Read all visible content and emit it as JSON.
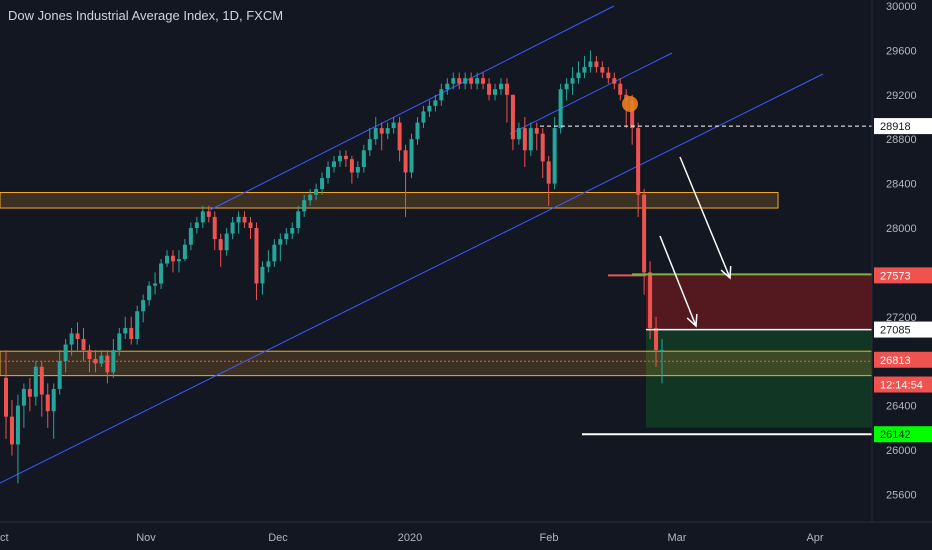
{
  "chart_data": {
    "type": "candlestick",
    "title": "Dow Jones Industrial Average Index, 1D, FXCM",
    "y_ticks": [
      30000,
      29600,
      29200,
      28800,
      28400,
      28000,
      27600,
      27200,
      26800,
      26400,
      26000,
      25600
    ],
    "ylim": [
      25500,
      30000
    ],
    "x_labels": [
      "Oct",
      "Nov",
      "Dec",
      "2020",
      "Feb",
      "Mar",
      "Apr"
    ],
    "grid": false,
    "price_tags": [
      {
        "label": "28918",
        "value": 28918,
        "bg": "#ffffff",
        "fg": "#131722"
      },
      {
        "label": "27573",
        "value": 27573,
        "bg": "#ef5350",
        "fg": "#ffffff"
      },
      {
        "label": "27085",
        "value": 27085,
        "bg": "#ffffff",
        "fg": "#131722"
      },
      {
        "label": "26813",
        "value": 26813,
        "bg": "#ef5350",
        "fg": "#ffffff"
      },
      {
        "label": "12:14:54",
        "value": 26590,
        "bg": "#ef5350",
        "fg": "#ffffff"
      },
      {
        "label": "26142",
        "value": 26142,
        "bg": "#00ff00",
        "fg": "#131722"
      }
    ],
    "zones": [
      {
        "name": "resistance-zone",
        "y_top": 28320,
        "y_bottom": 28180,
        "color": "#f9a825"
      },
      {
        "name": "support-zone",
        "y_top": 26890,
        "y_bottom": 26670,
        "color": "#f9a825"
      }
    ],
    "trade": {
      "entry": 27085,
      "stop": 27573,
      "target": 26142
    },
    "candles_daily": [
      [
        26650,
        26300,
        26900,
        26100
      ],
      [
        26300,
        26050,
        26450,
        25950
      ],
      [
        26050,
        26400,
        26500,
        25700
      ],
      [
        26400,
        26550,
        26600,
        26200
      ],
      [
        26550,
        26480,
        26650,
        26350
      ],
      [
        26480,
        26750,
        26800,
        26400
      ],
      [
        26750,
        26500,
        26800,
        26300
      ],
      [
        26500,
        26350,
        26600,
        26200
      ],
      [
        26350,
        26550,
        26600,
        26100
      ],
      [
        26550,
        26800,
        26900,
        26500
      ],
      [
        26800,
        26950,
        27000,
        26700
      ],
      [
        26950,
        27050,
        27100,
        26850
      ],
      [
        27050,
        27000,
        27150,
        26900
      ],
      [
        27000,
        26900,
        27100,
        26800
      ],
      [
        26900,
        26820,
        26950,
        26700
      ],
      [
        26820,
        26780,
        26900,
        26700
      ],
      [
        26780,
        26850,
        26900,
        26750
      ],
      [
        26850,
        26700,
        26900,
        26600
      ],
      [
        26700,
        26900,
        27000,
        26650
      ],
      [
        26900,
        27050,
        27100,
        26850
      ],
      [
        27050,
        27100,
        27200,
        27000
      ],
      [
        27100,
        27000,
        27200,
        26950
      ],
      [
        27000,
        27250,
        27300,
        26950
      ],
      [
        27250,
        27350,
        27400,
        27150
      ],
      [
        27350,
        27480,
        27520,
        27300
      ],
      [
        27480,
        27500,
        27600,
        27400
      ],
      [
        27500,
        27680,
        27720,
        27450
      ],
      [
        27680,
        27750,
        27800,
        27650
      ],
      [
        27750,
        27700,
        27800,
        27600
      ],
      [
        27700,
        27720,
        27800,
        27600
      ],
      [
        27720,
        27850,
        27900,
        27700
      ],
      [
        27850,
        28000,
        28050,
        27800
      ],
      [
        28000,
        28050,
        28100,
        27950
      ],
      [
        28050,
        28150,
        28200,
        28000
      ],
      [
        28150,
        28100,
        28200,
        28050
      ],
      [
        28100,
        27900,
        28150,
        27800
      ],
      [
        27900,
        27800,
        27950,
        27650
      ],
      [
        27800,
        27950,
        28000,
        27750
      ],
      [
        27950,
        28050,
        28100,
        27900
      ],
      [
        28050,
        28100,
        28150,
        27950
      ],
      [
        28100,
        28050,
        28150,
        28000
      ],
      [
        28050,
        28000,
        28100,
        27900
      ],
      [
        28000,
        27500,
        28050,
        27350
      ],
      [
        27500,
        27650,
        27700,
        27400
      ],
      [
        27650,
        27700,
        27800,
        27600
      ],
      [
        27700,
        27850,
        27900,
        27650
      ],
      [
        27850,
        27900,
        27950,
        27700
      ],
      [
        27900,
        27950,
        28000,
        27850
      ],
      [
        27950,
        28000,
        28050,
        27900
      ],
      [
        28000,
        28150,
        28200,
        27950
      ],
      [
        28150,
        28250,
        28300,
        28100
      ],
      [
        28250,
        28300,
        28350,
        28200
      ],
      [
        28300,
        28350,
        28400,
        28250
      ],
      [
        28350,
        28450,
        28500,
        28300
      ],
      [
        28450,
        28550,
        28600,
        28400
      ],
      [
        28550,
        28600,
        28650,
        28500
      ],
      [
        28600,
        28650,
        28700,
        28550
      ],
      [
        28650,
        28620,
        28700,
        28550
      ],
      [
        28620,
        28500,
        28650,
        28400
      ],
      [
        28500,
        28550,
        28600,
        28450
      ],
      [
        28550,
        28700,
        28750,
        28500
      ],
      [
        28700,
        28800,
        28900,
        28650
      ],
      [
        28800,
        28900,
        29000,
        28750
      ],
      [
        28900,
        28850,
        28950,
        28700
      ],
      [
        28850,
        28900,
        28950,
        28800
      ],
      [
        28900,
        28950,
        29000,
        28850
      ],
      [
        28950,
        28700,
        29000,
        28600
      ],
      [
        28700,
        28500,
        28750,
        28100
      ],
      [
        28500,
        28800,
        28850,
        28450
      ],
      [
        28800,
        28950,
        29000,
        28750
      ],
      [
        28950,
        29050,
        29100,
        28900
      ],
      [
        29050,
        29100,
        29150,
        29000
      ],
      [
        29100,
        29150,
        29200,
        29050
      ],
      [
        29150,
        29250,
        29300,
        29100
      ],
      [
        29250,
        29300,
        29350,
        29200
      ],
      [
        29300,
        29350,
        29400,
        29250
      ],
      [
        29350,
        29300,
        29400,
        29250
      ],
      [
        29300,
        29350,
        29400,
        29250
      ],
      [
        29350,
        29300,
        29400,
        29250
      ],
      [
        29300,
        29350,
        29400,
        29250
      ],
      [
        29350,
        29300,
        29400,
        29250
      ],
      [
        29300,
        29200,
        29350,
        29150
      ],
      [
        29200,
        29250,
        29300,
        29150
      ],
      [
        29250,
        29300,
        29350,
        29200
      ],
      [
        29300,
        29200,
        29350,
        28950
      ],
      [
        29200,
        28800,
        29200,
        28700
      ],
      [
        28800,
        28900,
        28950,
        28750
      ],
      [
        28900,
        28700,
        29000,
        28550
      ],
      [
        28700,
        28900,
        28950,
        28650
      ],
      [
        28900,
        28850,
        28950,
        28700
      ],
      [
        28850,
        28600,
        28900,
        28450
      ],
      [
        28600,
        28400,
        28650,
        28200
      ],
      [
        28400,
        28900,
        29000,
        28350
      ],
      [
        28900,
        29250,
        29300,
        28850
      ],
      [
        29250,
        29300,
        29350,
        29150
      ],
      [
        29300,
        29350,
        29450,
        29200
      ],
      [
        29350,
        29400,
        29500,
        29300
      ],
      [
        29400,
        29450,
        29550,
        29350
      ],
      [
        29450,
        29500,
        29600,
        29400
      ],
      [
        29500,
        29450,
        29550,
        29400
      ],
      [
        29450,
        29400,
        29500,
        29350
      ],
      [
        29400,
        29350,
        29450,
        29300
      ],
      [
        29350,
        29300,
        29400,
        29250
      ],
      [
        29300,
        29200,
        29350,
        29150
      ],
      [
        29200,
        29150,
        29250,
        28900
      ],
      [
        29150,
        28900,
        29200,
        28750
      ],
      [
        28900,
        28300,
        28950,
        28100
      ],
      [
        28300,
        27600,
        28350,
        27400
      ],
      [
        27600,
        27100,
        27700,
        27000
      ],
      [
        27100,
        26900,
        27200,
        26750
      ],
      [
        26900,
        26900,
        27000,
        26600
      ]
    ],
    "trendlines": [
      "channel-upper",
      "channel-middle",
      "channel-lower"
    ],
    "arrows": 2
  },
  "colors": {
    "bg": "#131722",
    "up": "#26a69a",
    "down": "#ef5350",
    "trend": "#3d5afe",
    "zone": "#f9a825",
    "stop_fill": "#5b1a1f",
    "target_fill": "#133a25"
  }
}
